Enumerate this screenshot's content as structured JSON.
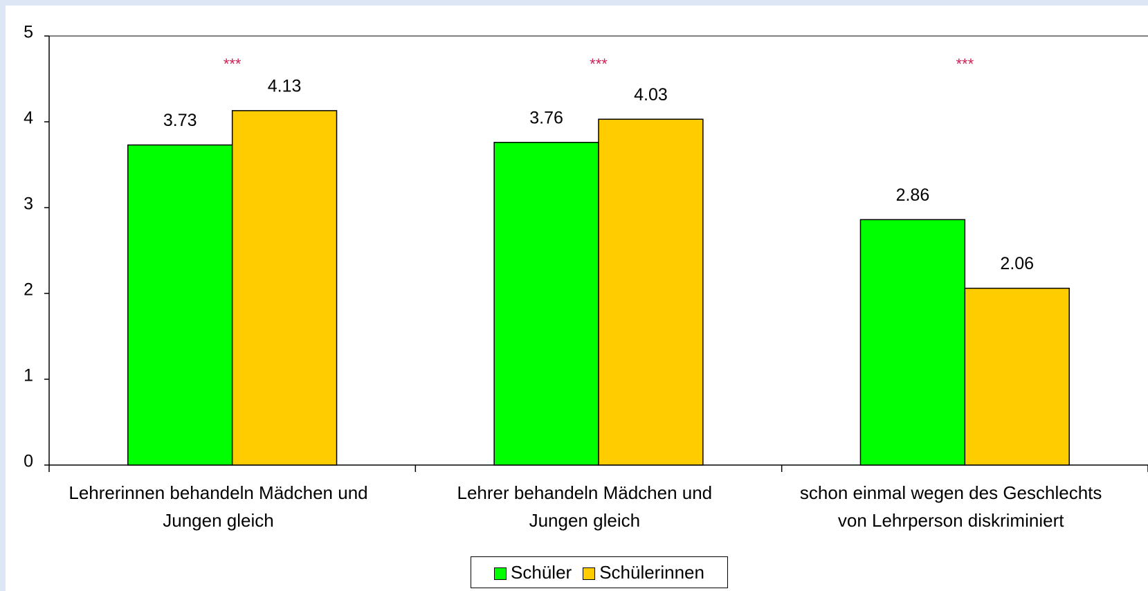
{
  "chart_data": {
    "type": "bar",
    "categories": [
      "Lehrerinnen behandeln Mädchen und\nJungen gleich",
      "Lehrer behandeln Mädchen und\nJungen gleich",
      "schon einmal wegen des Geschlechts\nvon Lehrperson diskriminiert"
    ],
    "series": [
      {
        "name": "Schüler",
        "color": "#00ff00",
        "values": [
          3.73,
          3.76,
          2.86
        ]
      },
      {
        "name": "Schülerinnen",
        "color": "#ffcc00",
        "values": [
          4.13,
          4.03,
          2.06
        ]
      }
    ],
    "annotations": [
      "***",
      "***",
      "***"
    ],
    "annotation_color": "#cc2255",
    "ylim": [
      0,
      5
    ],
    "yticks": [
      0,
      1,
      2,
      3,
      4,
      5
    ],
    "grid": false,
    "legend": "bottom"
  }
}
